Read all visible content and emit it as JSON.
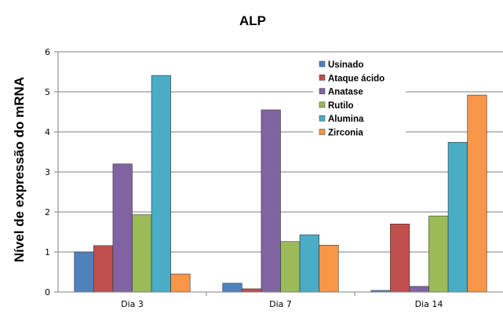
{
  "chart_data": {
    "type": "bar",
    "title": "ALP",
    "xlabel": "",
    "ylabel": "Nível de expressão do mRNA",
    "categories": [
      "Dia 3",
      "Dia 7",
      "Dia 14"
    ],
    "ylim": [
      0,
      6
    ],
    "yticks": [
      0,
      1,
      2,
      3,
      4,
      5,
      6
    ],
    "grid": true,
    "legend_position": "top-right",
    "series": [
      {
        "name": "Usinado",
        "color": "#4f81bd",
        "values": [
          1.0,
          0.22,
          0.04
        ]
      },
      {
        "name": "Ataque ácido",
        "color": "#c0504d",
        "values": [
          1.16,
          0.08,
          1.7
        ]
      },
      {
        "name": "Anatase",
        "color": "#8064a2",
        "values": [
          3.2,
          4.55,
          0.14
        ]
      },
      {
        "name": "Rutilo",
        "color": "#9bbb59",
        "values": [
          1.93,
          1.26,
          1.9
        ]
      },
      {
        "name": "Alumina",
        "color": "#4bacc6",
        "values": [
          5.41,
          1.43,
          3.74
        ]
      },
      {
        "name": "Zirconia",
        "color": "#f79646",
        "values": [
          0.45,
          1.17,
          4.92
        ]
      }
    ]
  }
}
